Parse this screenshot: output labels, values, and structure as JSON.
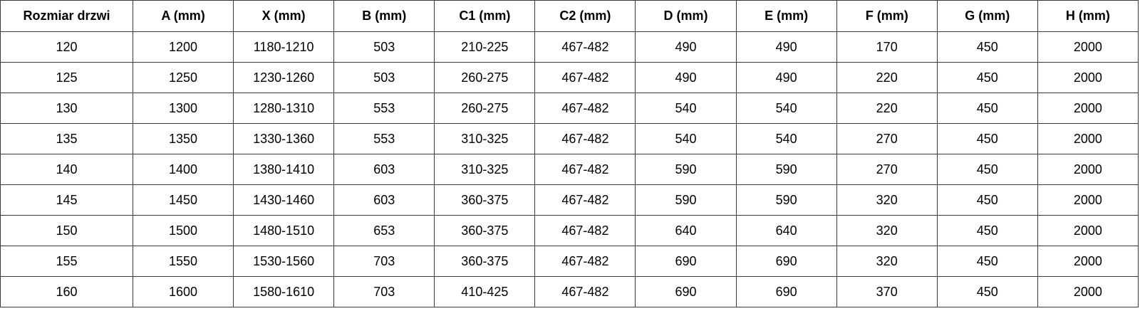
{
  "table": {
    "headers": [
      "Rozmiar drzwi",
      "A (mm)",
      "X (mm)",
      "B (mm)",
      "C1 (mm)",
      "C2 (mm)",
      "D (mm)",
      "E (mm)",
      "F (mm)",
      "G (mm)",
      "H (mm)"
    ],
    "rows": [
      [
        "120",
        "1200",
        "1180-1210",
        "503",
        "210-225",
        "467-482",
        "490",
        "490",
        "170",
        "450",
        "2000"
      ],
      [
        "125",
        "1250",
        "1230-1260",
        "503",
        "260-275",
        "467-482",
        "490",
        "490",
        "220",
        "450",
        "2000"
      ],
      [
        "130",
        "1300",
        "1280-1310",
        "553",
        "260-275",
        "467-482",
        "540",
        "540",
        "220",
        "450",
        "2000"
      ],
      [
        "135",
        "1350",
        "1330-1360",
        "553",
        "310-325",
        "467-482",
        "540",
        "540",
        "270",
        "450",
        "2000"
      ],
      [
        "140",
        "1400",
        "1380-1410",
        "603",
        "310-325",
        "467-482",
        "590",
        "590",
        "270",
        "450",
        "2000"
      ],
      [
        "145",
        "1450",
        "1430-1460",
        "603",
        "360-375",
        "467-482",
        "590",
        "590",
        "320",
        "450",
        "2000"
      ],
      [
        "150",
        "1500",
        "1480-1510",
        "653",
        "360-375",
        "467-482",
        "640",
        "640",
        "320",
        "450",
        "2000"
      ],
      [
        "155",
        "1550",
        "1530-1560",
        "703",
        "360-375",
        "467-482",
        "690",
        "690",
        "320",
        "450",
        "2000"
      ],
      [
        "160",
        "1600",
        "1580-1610",
        "703",
        "410-425",
        "467-482",
        "690",
        "690",
        "370",
        "450",
        "2000"
      ]
    ]
  }
}
